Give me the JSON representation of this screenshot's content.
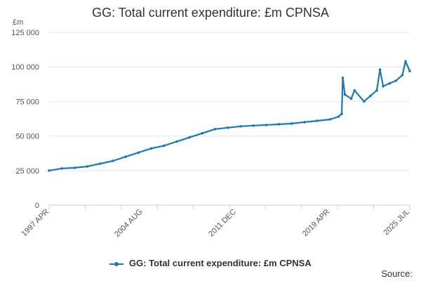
{
  "chart_data": {
    "type": "line",
    "title": "GG: Total current expenditure: £m CPNSA",
    "ylabel": "£m",
    "xlabel": "",
    "ylim": [
      0,
      125000
    ],
    "yticks": [
      0,
      25000,
      50000,
      75000,
      100000,
      125000
    ],
    "ytick_labels": [
      "0",
      "25 000",
      "50 000",
      "75 000",
      "100 000",
      "125 000"
    ],
    "xlim": [
      "1997 APR",
      "2025 JUL"
    ],
    "xtick_labels": [
      "1997 APR",
      "2004 AUG",
      "2011 DEC",
      "2019 APR",
      "2025 JUL"
    ],
    "grid": "horizontal",
    "legend_position": "bottom",
    "series": [
      {
        "name": "GG: Total current expenditure: £m CPNSA",
        "color": "#1f78b4",
        "points": [
          [
            "1997 APR",
            25000
          ],
          [
            "1998 APR",
            26500
          ],
          [
            "1999 APR",
            27000
          ],
          [
            "2000 APR",
            28000
          ],
          [
            "2001 APR",
            30000
          ],
          [
            "2002 APR",
            32000
          ],
          [
            "2003 APR",
            35000
          ],
          [
            "2004 APR",
            38000
          ],
          [
            "2005 APR",
            41000
          ],
          [
            "2006 APR",
            43000
          ],
          [
            "2007 APR",
            46000
          ],
          [
            "2008 APR",
            49000
          ],
          [
            "2009 APR",
            52000
          ],
          [
            "2010 APR",
            55000
          ],
          [
            "2011 APR",
            56000
          ],
          [
            "2012 APR",
            57000
          ],
          [
            "2013 APR",
            57500
          ],
          [
            "2014 APR",
            58000
          ],
          [
            "2015 APR",
            58500
          ],
          [
            "2016 APR",
            59000
          ],
          [
            "2017 APR",
            60000
          ],
          [
            "2018 APR",
            61000
          ],
          [
            "2019 APR",
            62000
          ],
          [
            "2019 DEC",
            64000
          ],
          [
            "2020 MAR",
            66000
          ],
          [
            "2020 APR",
            92000
          ],
          [
            "2020 JUN",
            80000
          ],
          [
            "2020 DEC",
            77000
          ],
          [
            "2021 MAR",
            83000
          ],
          [
            "2021 DEC",
            75000
          ],
          [
            "2022 JUN",
            79000
          ],
          [
            "2022 DEC",
            83000
          ],
          [
            "2023 MAR",
            98000
          ],
          [
            "2023 JUN",
            86000
          ],
          [
            "2023 DEC",
            88000
          ],
          [
            "2024 JUN",
            90000
          ],
          [
            "2024 DEC",
            94000
          ],
          [
            "2025 MAR",
            104000
          ],
          [
            "2025 JUL",
            97000
          ]
        ]
      }
    ]
  },
  "legend_label": "GG: Total current expenditure: £m CPNSA",
  "source_label": "Source:"
}
